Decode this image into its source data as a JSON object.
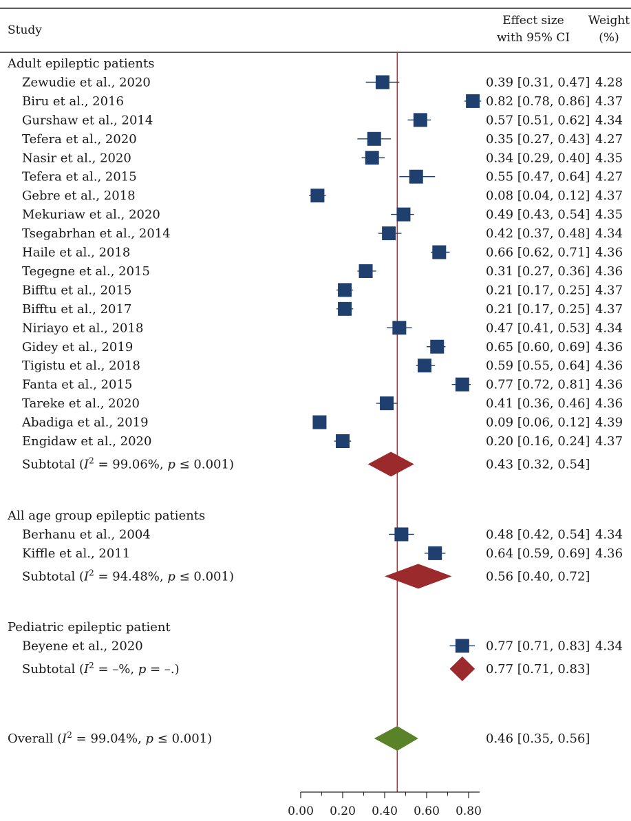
{
  "chart_data": {
    "type": "forest",
    "header": {
      "study": "Study",
      "effect_line1": "Effect size",
      "effect_line2": "with 95% CI",
      "weight_line1": "Weight",
      "weight_line2": "(%)"
    },
    "xlim": [
      0.0,
      0.8
    ],
    "xticks": [
      "0.00",
      "0.20",
      "0.40",
      "0.60",
      "0.80"
    ],
    "reference_line": 0.46,
    "colors": {
      "study_marker": "#1f3f6e",
      "subtotal_diamond": "#9b2a2c",
      "overall_diamond": "#5a8228",
      "reference_line": "#c0282c"
    },
    "groups": [
      {
        "name": "Adult epileptic patients",
        "studies": [
          {
            "study": "Zewudie et al., 2020",
            "es": 0.39,
            "lo": 0.31,
            "hi": 0.47,
            "ci_text": "0.39 [0.31, 0.47]",
            "weight": "4.28"
          },
          {
            "study": "Biru et al., 2016",
            "es": 0.82,
            "lo": 0.78,
            "hi": 0.86,
            "ci_text": "0.82 [0.78, 0.86]",
            "weight": "4.37"
          },
          {
            "study": "Gurshaw et al., 2014",
            "es": 0.57,
            "lo": 0.51,
            "hi": 0.62,
            "ci_text": "0.57 [0.51, 0.62]",
            "weight": "4.34"
          },
          {
            "study": "Tefera et al., 2020",
            "es": 0.35,
            "lo": 0.27,
            "hi": 0.43,
            "ci_text": "0.35 [0.27, 0.43]",
            "weight": "4.27"
          },
          {
            "study": "Nasir et al., 2020",
            "es": 0.34,
            "lo": 0.29,
            "hi": 0.4,
            "ci_text": "0.34 [0.29, 0.40]",
            "weight": "4.35"
          },
          {
            "study": "Tefera et al., 2015",
            "es": 0.55,
            "lo": 0.47,
            "hi": 0.64,
            "ci_text": "0.55 [0.47, 0.64]",
            "weight": "4.27"
          },
          {
            "study": "Gebre et al., 2018",
            "es": 0.08,
            "lo": 0.04,
            "hi": 0.12,
            "ci_text": "0.08 [0.04, 0.12]",
            "weight": "4.37"
          },
          {
            "study": "Mekuriaw et al., 2020",
            "es": 0.49,
            "lo": 0.43,
            "hi": 0.54,
            "ci_text": "0.49 [0.43, 0.54]",
            "weight": "4.35"
          },
          {
            "study": "Tsegabrhan et al., 2014",
            "es": 0.42,
            "lo": 0.37,
            "hi": 0.48,
            "ci_text": "0.42 [0.37, 0.48]",
            "weight": "4.34"
          },
          {
            "study": "Haile et al., 2018",
            "es": 0.66,
            "lo": 0.62,
            "hi": 0.71,
            "ci_text": "0.66 [0.62, 0.71]",
            "weight": "4.36"
          },
          {
            "study": "Tegegne et al., 2015",
            "es": 0.31,
            "lo": 0.27,
            "hi": 0.36,
            "ci_text": "0.31 [0.27, 0.36]",
            "weight": "4.36"
          },
          {
            "study": "Bifftu et al., 2015",
            "es": 0.21,
            "lo": 0.17,
            "hi": 0.25,
            "ci_text": "0.21 [0.17, 0.25]",
            "weight": "4.37"
          },
          {
            "study": "Bifftu et al., 2017",
            "es": 0.21,
            "lo": 0.17,
            "hi": 0.25,
            "ci_text": "0.21 [0.17, 0.25]",
            "weight": "4.37"
          },
          {
            "study": "Niriayo et al., 2018",
            "es": 0.47,
            "lo": 0.41,
            "hi": 0.53,
            "ci_text": "0.47 [0.41, 0.53]",
            "weight": "4.34"
          },
          {
            "study": "Gidey et al., 2019",
            "es": 0.65,
            "lo": 0.6,
            "hi": 0.69,
            "ci_text": "0.65 [0.60, 0.69]",
            "weight": "4.36"
          },
          {
            "study": "Tigistu et al., 2018",
            "es": 0.59,
            "lo": 0.55,
            "hi": 0.64,
            "ci_text": "0.59 [0.55, 0.64]",
            "weight": "4.36"
          },
          {
            "study": "Fanta et al., 2015",
            "es": 0.77,
            "lo": 0.72,
            "hi": 0.81,
            "ci_text": "0.77 [0.72, 0.81]",
            "weight": "4.36"
          },
          {
            "study": "Tareke et al., 2020",
            "es": 0.41,
            "lo": 0.36,
            "hi": 0.46,
            "ci_text": "0.41 [0.36, 0.46]",
            "weight": "4.36"
          },
          {
            "study": "Abadiga et al., 2019",
            "es": 0.09,
            "lo": 0.06,
            "hi": 0.12,
            "ci_text": "0.09 [0.06, 0.12]",
            "weight": "4.39"
          },
          {
            "study": "Engidaw et al., 2020",
            "es": 0.2,
            "lo": 0.16,
            "hi": 0.24,
            "ci_text": "0.20 [0.16, 0.24]",
            "weight": "4.37"
          }
        ],
        "subtotal": {
          "i2": "99.06%",
          "p": "≤ 0.001",
          "es": 0.43,
          "lo": 0.32,
          "hi": 0.54,
          "ci_text": "0.43 [0.32, 0.54]"
        }
      },
      {
        "name": "All age group epileptic patients",
        "studies": [
          {
            "study": "Berhanu et al., 2004",
            "es": 0.48,
            "lo": 0.42,
            "hi": 0.54,
            "ci_text": "0.48 [0.42, 0.54]",
            "weight": "4.34"
          },
          {
            "study": "Kiffle et al., 2011",
            "es": 0.64,
            "lo": 0.59,
            "hi": 0.69,
            "ci_text": "0.64 [0.59, 0.69]",
            "weight": "4.36"
          }
        ],
        "subtotal": {
          "i2": "94.48%",
          "p": "≤ 0.001",
          "es": 0.56,
          "lo": 0.4,
          "hi": 0.72,
          "ci_text": "0.56 [0.40, 0.72]"
        }
      },
      {
        "name": "Pediatric epileptic patient",
        "studies": [
          {
            "study": "Beyene et al., 2020",
            "es": 0.77,
            "lo": 0.71,
            "hi": 0.83,
            "ci_text": "0.77 [0.71, 0.83]",
            "weight": "4.34"
          }
        ],
        "subtotal": {
          "i2": "–%",
          "p": "= –.",
          "es": 0.77,
          "lo": 0.71,
          "hi": 0.83,
          "ci_text": "0.77 [0.71, 0.83]"
        }
      }
    ],
    "overall": {
      "i2": "99.04%",
      "p": "≤ 0.001",
      "es": 0.46,
      "lo": 0.35,
      "hi": 0.56,
      "ci_text": "0.46 [0.35, 0.56]"
    }
  }
}
